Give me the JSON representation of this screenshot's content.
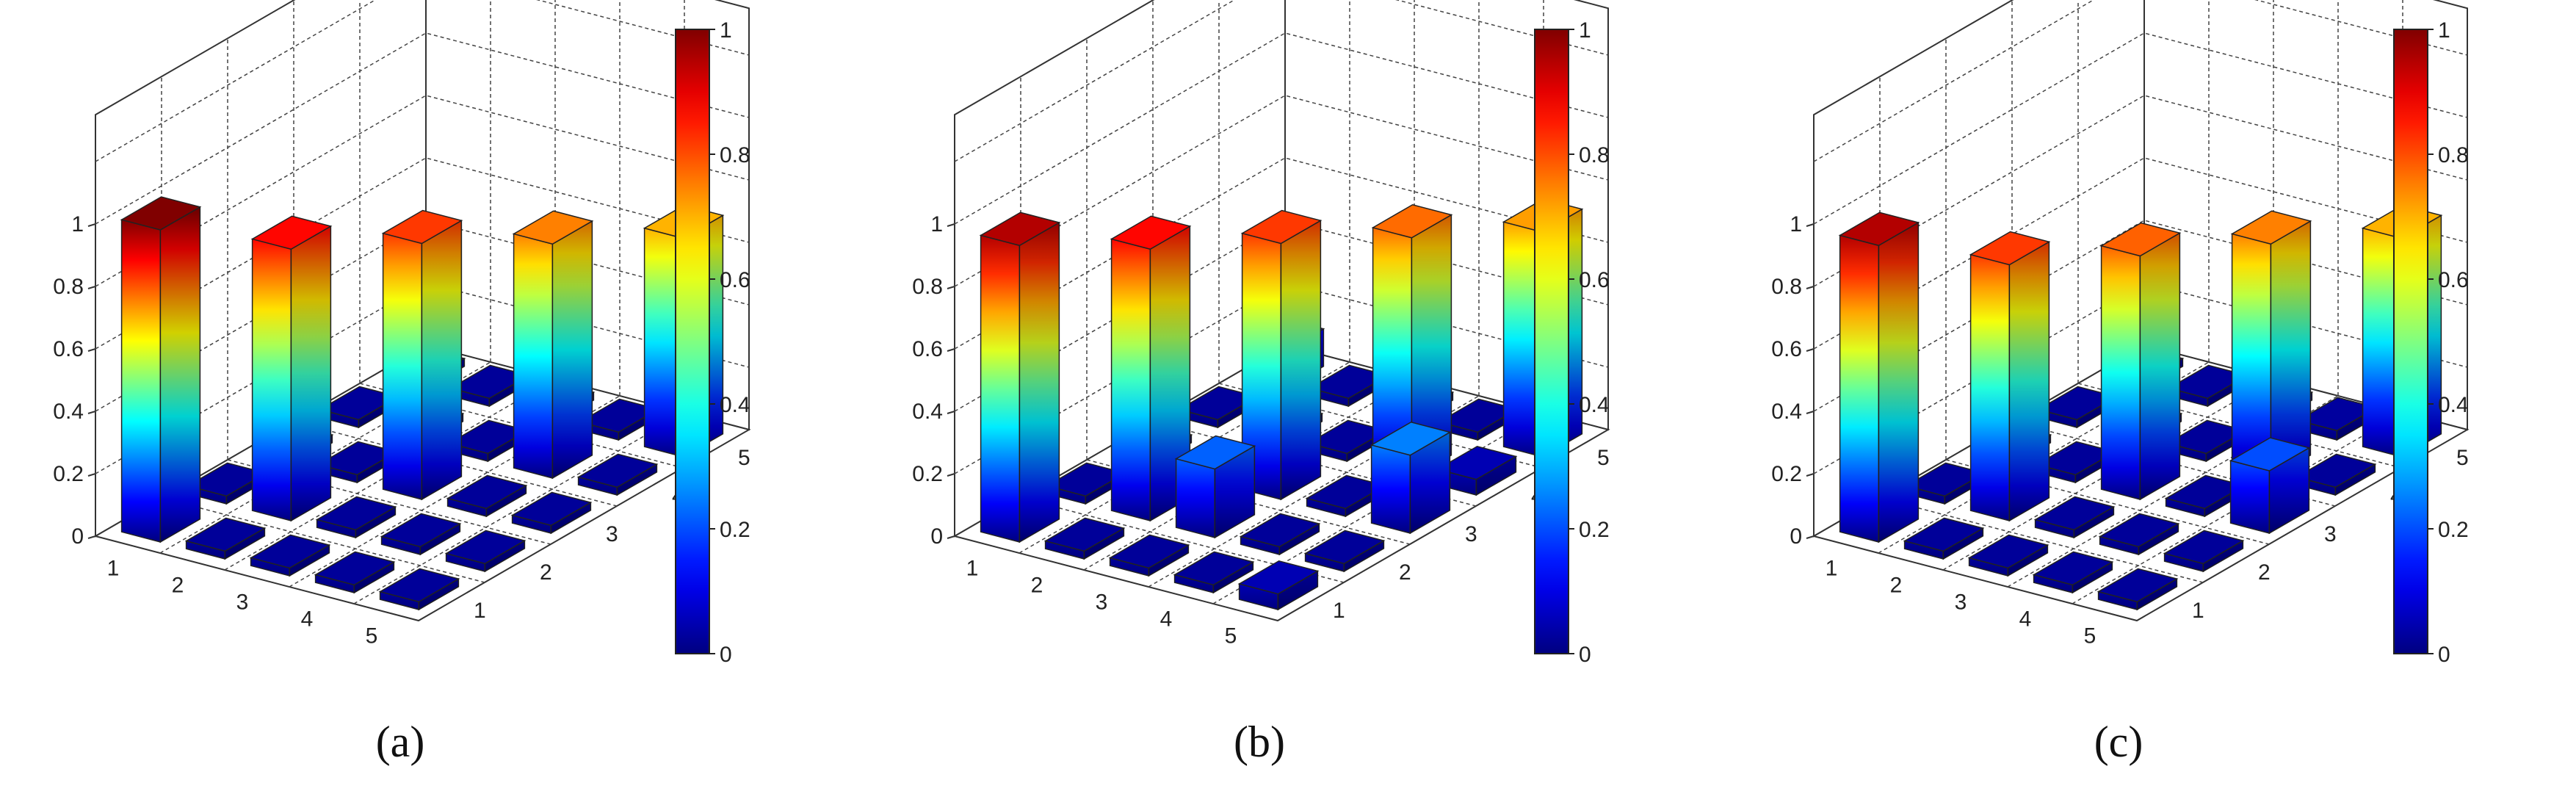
{
  "chart_data": [
    {
      "type": "bar3d",
      "panel_label": "(a)",
      "x_ticks": [
        "1",
        "2",
        "3",
        "4",
        "5"
      ],
      "y_ticks": [
        "1",
        "2",
        "3",
        "4",
        "5"
      ],
      "z_ticks": [
        "0",
        "0.2",
        "0.4",
        "0.6",
        "0.8",
        "1"
      ],
      "zlim": [
        0,
        1
      ],
      "colorbar": {
        "ticks": [
          "0",
          "0.2",
          "0.4",
          "0.6",
          "0.8",
          "1"
        ],
        "range": [
          0,
          1
        ],
        "colormap": "jet"
      },
      "matrix": [
        [
          1.0,
          0.0,
          0.0,
          0.0,
          0.0
        ],
        [
          0.0,
          0.87,
          0.0,
          0.0,
          0.0
        ],
        [
          0.0,
          0.0,
          0.82,
          0.0,
          0.0
        ],
        [
          0.0,
          0.0,
          0.0,
          0.75,
          0.0
        ],
        [
          0.0,
          0.0,
          0.0,
          0.0,
          0.7
        ]
      ]
    },
    {
      "type": "bar3d",
      "panel_label": "(b)",
      "x_ticks": [
        "1",
        "2",
        "3",
        "4",
        "5"
      ],
      "y_ticks": [
        "1",
        "2",
        "3",
        "4",
        "5"
      ],
      "z_ticks": [
        "0",
        "0.2",
        "0.4",
        "0.6",
        "0.8",
        "1"
      ],
      "zlim": [
        0,
        1
      ],
      "colorbar": {
        "ticks": [
          "0",
          "0.2",
          "0.4",
          "0.6",
          "0.8",
          "1"
        ],
        "range": [
          0,
          1
        ],
        "colormap": "jet"
      },
      "matrix": [
        [
          0.95,
          0.0,
          0.0,
          0.0,
          0.12
        ],
        [
          0.0,
          0.87,
          0.0,
          0.0,
          0.0
        ],
        [
          0.0,
          0.22,
          0.82,
          0.0,
          0.0
        ],
        [
          0.0,
          0.0,
          0.0,
          0.77,
          0.0
        ],
        [
          0.05,
          0.0,
          0.25,
          0.05,
          0.72
        ]
      ]
    },
    {
      "type": "bar3d",
      "panel_label": "(c)",
      "x_ticks": [
        "1",
        "2",
        "3",
        "4",
        "5"
      ],
      "y_ticks": [
        "1",
        "2",
        "3",
        "4",
        "5"
      ],
      "z_ticks": [
        "0",
        "0.2",
        "0.4",
        "0.6",
        "0.8",
        "1"
      ],
      "zlim": [
        0,
        1
      ],
      "colorbar": {
        "ticks": [
          "0",
          "0.2",
          "0.4",
          "0.6",
          "0.8",
          "1"
        ],
        "range": [
          0,
          1
        ],
        "colormap": "jet"
      },
      "matrix": [
        [
          0.95,
          0.0,
          0.0,
          0.0,
          0.0
        ],
        [
          0.0,
          0.82,
          0.0,
          0.0,
          0.0
        ],
        [
          0.0,
          0.0,
          0.78,
          0.0,
          0.0
        ],
        [
          0.0,
          0.0,
          0.0,
          0.75,
          0.03
        ],
        [
          0.0,
          0.02,
          0.2,
          0.0,
          0.7
        ]
      ]
    }
  ]
}
